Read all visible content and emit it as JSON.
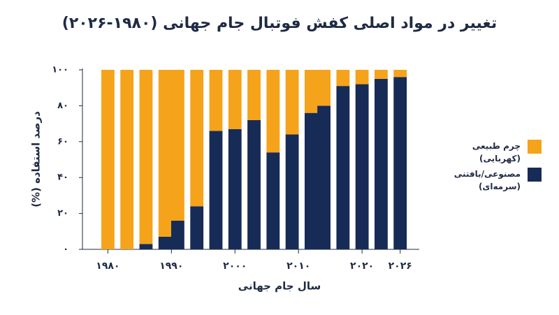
{
  "chart_data": {
    "type": "bar",
    "stacked": true,
    "title": "تغییر در مواد اصلی کفش فوتبال جام جهانی (۱۹۸۰-۲۰۲۶)",
    "x_label": "سال جام جهانی",
    "y_label": "درصد استفاده (%)",
    "x": [
      1980,
      1983,
      1986,
      1989,
      1991,
      1994,
      1997,
      2000,
      2003,
      2006,
      2009,
      2012,
      2014,
      2017,
      2020,
      2023,
      2026
    ],
    "series": [
      {
        "name": "چرم طبیعی (کهربایی)",
        "color": "#f5a31a",
        "values": [
          100,
          100,
          97,
          93,
          84,
          76,
          34,
          33,
          28,
          46,
          36,
          24,
          20,
          9,
          8,
          5,
          4
        ]
      },
      {
        "name": "مصنوعی/بافتنی (سرمه‌ای)",
        "color": "#172b57",
        "values": [
          0,
          0,
          3,
          7,
          16,
          24,
          66,
          67,
          72,
          54,
          64,
          76,
          80,
          91,
          92,
          95,
          96
        ]
      }
    ],
    "xlim": [
      1976,
      2029
    ],
    "xticks": [
      {
        "value": 1980,
        "label": "۱۹۸۰"
      },
      {
        "value": 1990,
        "label": "۱۹۹۰"
      },
      {
        "value": 2000,
        "label": "۲۰۰۰"
      },
      {
        "value": 2010,
        "label": "۲۰۱۰"
      },
      {
        "value": 2020,
        "label": "۲۰۲۰"
      },
      {
        "value": 2026,
        "label": "۲۰۲۶"
      }
    ],
    "ylim": [
      0,
      100
    ],
    "yticks": [
      {
        "value": 0,
        "label": "۰"
      },
      {
        "value": 20,
        "label": "۲۰"
      },
      {
        "value": 40,
        "label": "۴۰"
      },
      {
        "value": 60,
        "label": "۶۰"
      },
      {
        "value": 80,
        "label": "۸۰"
      },
      {
        "value": 100,
        "label": "۱۰۰"
      }
    ],
    "grid": false,
    "legend": "right"
  }
}
